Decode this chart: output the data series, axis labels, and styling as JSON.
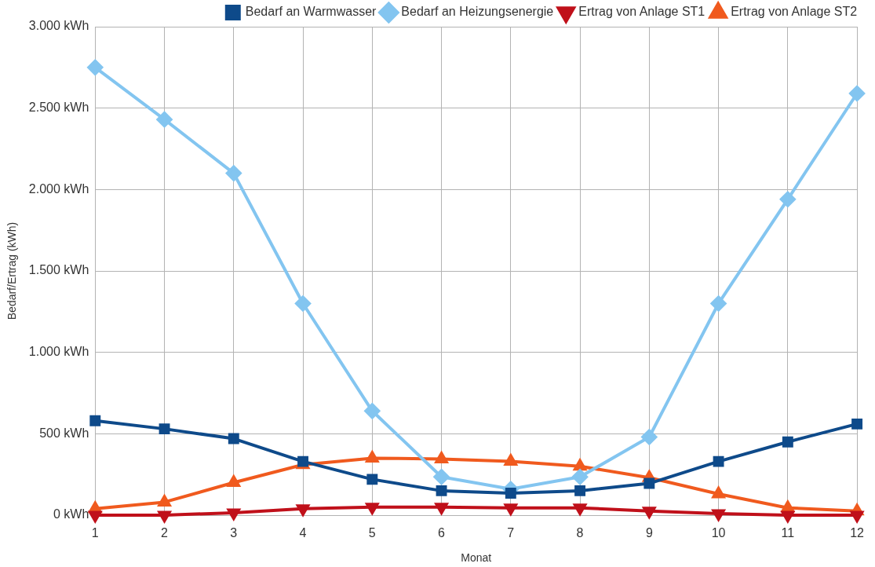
{
  "chart_data": {
    "type": "line",
    "xlabel": "Monat",
    "ylabel": "Bedarf/Ertrag (kWh)",
    "x": [
      1,
      2,
      3,
      4,
      5,
      6,
      7,
      8,
      9,
      10,
      11,
      12
    ],
    "xlim": [
      1,
      12
    ],
    "xticks": [
      1,
      2,
      3,
      4,
      5,
      6,
      7,
      8,
      9,
      10,
      11,
      12
    ],
    "ylim": [
      0,
      3000
    ],
    "yticks": [
      {
        "value": 0,
        "label": "0 kWh"
      },
      {
        "value": 500,
        "label": "500 kWh"
      },
      {
        "value": 1000,
        "label": "1.000 kWh"
      },
      {
        "value": 1500,
        "label": "1.500 kWh"
      },
      {
        "value": 2000,
        "label": "2.000 kWh"
      },
      {
        "value": 2500,
        "label": "2.500 kWh"
      },
      {
        "value": 3000,
        "label": "3.000 kWh"
      }
    ],
    "grid": true,
    "legend": "top right",
    "line_style": "solid",
    "series": [
      {
        "name": "Bedarf an Warmwasser",
        "color": "#0e4a8a",
        "marker": "square",
        "values": [
          580,
          530,
          470,
          330,
          220,
          150,
          135,
          150,
          195,
          330,
          450,
          560
        ]
      },
      {
        "name": "Bedarf an Heizungsenergie",
        "color": "#83c5f0",
        "marker": "diamond",
        "values": [
          2750,
          2430,
          2100,
          1300,
          640,
          235,
          160,
          235,
          480,
          1300,
          1940,
          2590
        ]
      },
      {
        "name": "Ertrag von Anlage ST1",
        "color": "#c0101a",
        "marker": "triangle-down",
        "values": [
          0,
          0,
          15,
          40,
          50,
          50,
          45,
          45,
          25,
          10,
          0,
          0
        ]
      },
      {
        "name": "Ertrag von Anlage ST2",
        "color": "#f05a1e",
        "marker": "triangle",
        "values": [
          40,
          80,
          200,
          310,
          350,
          345,
          330,
          300,
          230,
          130,
          45,
          25
        ]
      }
    ]
  }
}
